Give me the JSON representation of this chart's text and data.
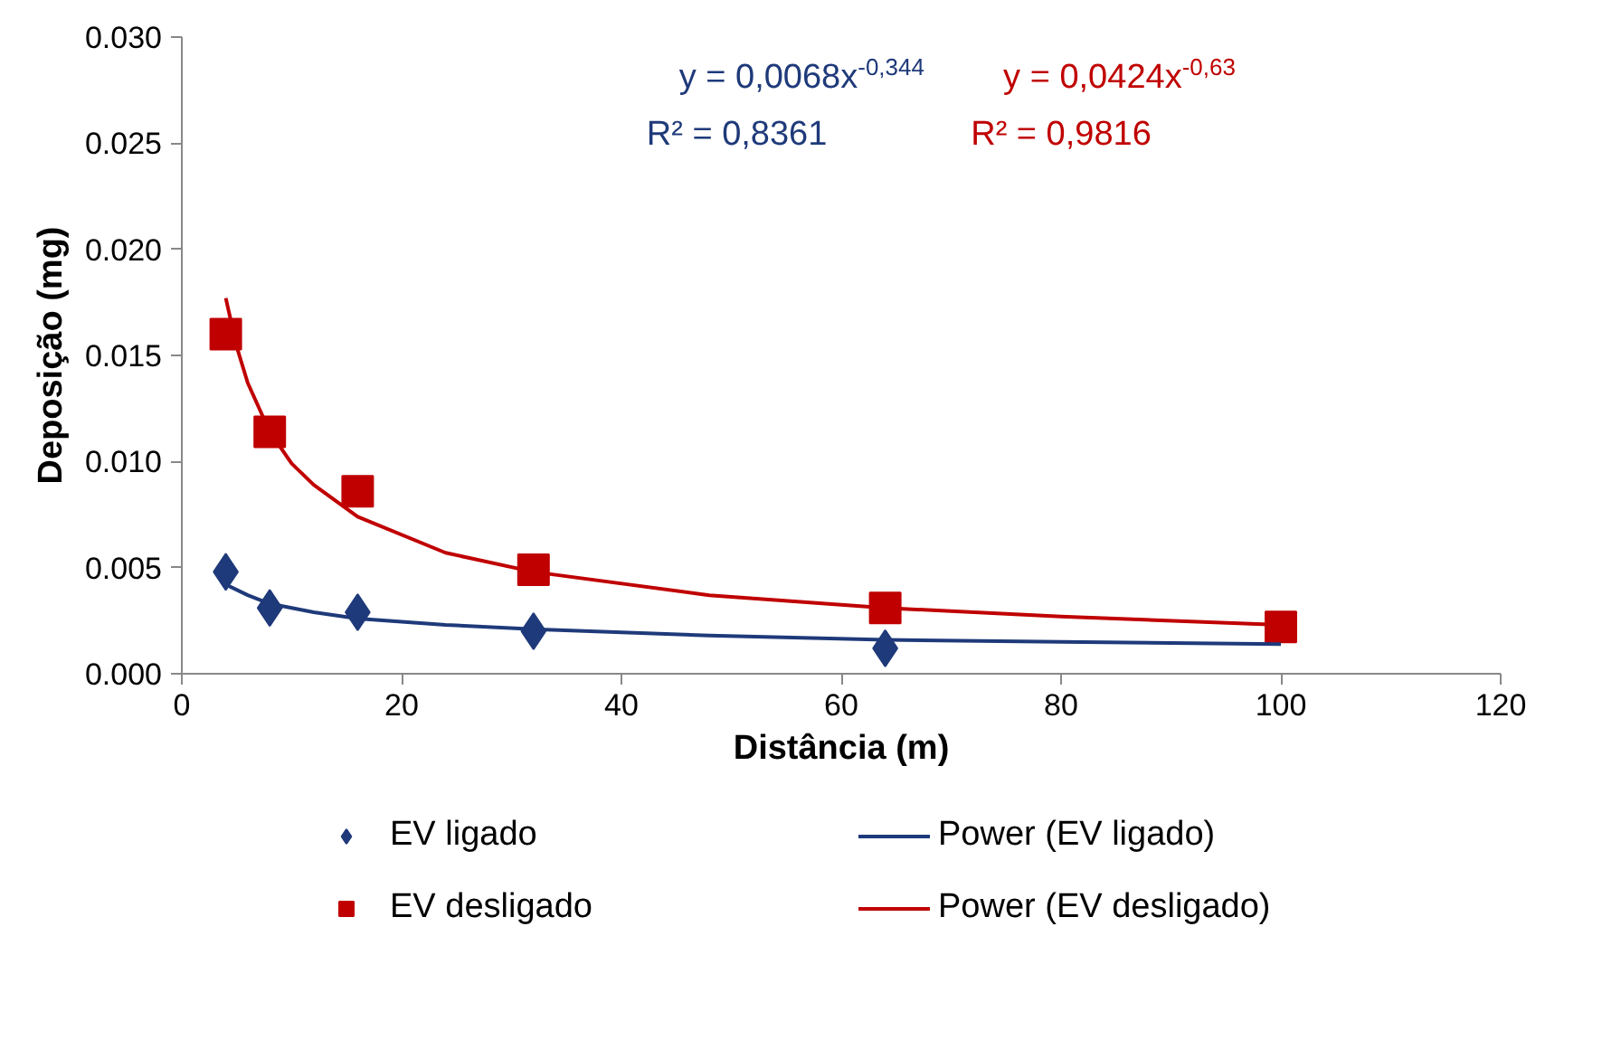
{
  "chart_data": {
    "type": "scatter",
    "xlabel": "Distância (m)",
    "ylabel": "Deposição (mg)",
    "xlim": [
      0,
      120
    ],
    "xticks": [
      0,
      20,
      40,
      60,
      80,
      100,
      120
    ],
    "ylim": [
      0,
      0.03
    ],
    "yticks": [
      {
        "value": 0,
        "label": "0.000"
      },
      {
        "value": 0.005,
        "label": "0.005"
      },
      {
        "value": 0.01,
        "label": "0.010"
      },
      {
        "value": 0.015,
        "label": "0.015"
      },
      {
        "value": 0.02,
        "label": "0.020"
      },
      {
        "value": 0.025,
        "label": "0.025"
      },
      {
        "value": 0.03,
        "label": "0.030"
      }
    ],
    "grid": false,
    "legend": "bottom",
    "annotations": [
      "y = 0,0068x$^{-0,344}$",
      "R² = 0,8361",
      "y = 0,0424x$^{-0,63}$",
      "R² = 0,9816"
    ],
    "series": [
      {
        "name": "EV ligado",
        "marker": "diamond",
        "color": "#1f3a7a",
        "x": [
          4,
          8,
          16,
          32,
          64
        ],
        "values": [
          0.0048,
          0.0031,
          0.0029,
          0.002,
          0.0012
        ]
      },
      {
        "name": "EV desligado",
        "marker": "square",
        "color": "#c00000",
        "x": [
          4,
          8,
          16,
          32,
          64,
          100
        ],
        "values": [
          0.016,
          0.0114,
          0.0086,
          0.0049,
          0.0031,
          0.0022
        ]
      },
      {
        "name": "Power (EV ligado)",
        "type": "line",
        "color": "#1f3a7a",
        "x": [
          4,
          6,
          8,
          12,
          16,
          24,
          32,
          48,
          64,
          80,
          100
        ],
        "values": [
          0.0042,
          0.0037,
          0.0033,
          0.0029,
          0.0026,
          0.0023,
          0.0021,
          0.0018,
          0.0016,
          0.0015,
          0.0014
        ]
      },
      {
        "name": "Power (EV desligado)",
        "type": "line",
        "color": "#c00000",
        "x": [
          4,
          5,
          6,
          8,
          10,
          12,
          16,
          24,
          32,
          48,
          64,
          80,
          100
        ],
        "values": [
          0.0177,
          0.0154,
          0.0137,
          0.0114,
          0.0099,
          0.0089,
          0.0074,
          0.0057,
          0.0048,
          0.0037,
          0.0031,
          0.0027,
          0.0023
        ]
      }
    ]
  }
}
